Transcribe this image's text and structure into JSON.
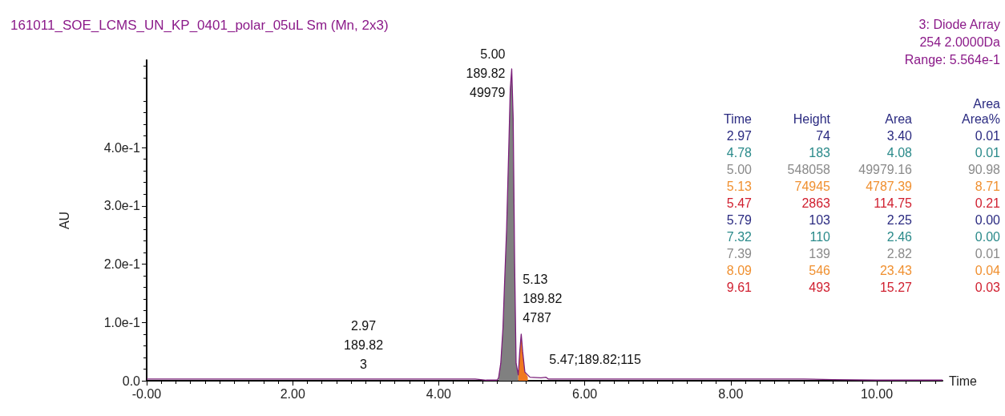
{
  "chart_data": {
    "type": "line",
    "title": "161011_SOE_LCMS_UN_KP_0401_polar_05uL Sm (Mn, 2x3)",
    "xlabel": "Time",
    "ylabel": "AU",
    "xlim": [
      0,
      10.9
    ],
    "ylim": [
      0,
      0.55
    ],
    "xticks": [
      {
        "value": 0,
        "label": "-0.00"
      },
      {
        "value": 2,
        "label": "2.00"
      },
      {
        "value": 4,
        "label": "4.00"
      },
      {
        "value": 6,
        "label": "6.00"
      },
      {
        "value": 8,
        "label": "8.00"
      },
      {
        "value": 10,
        "label": "10.00"
      }
    ],
    "yticks": [
      {
        "value": 0,
        "label": "0.0"
      },
      {
        "value": 0.1,
        "label": "1.0e-1"
      },
      {
        "value": 0.2,
        "label": "2.0e-1"
      },
      {
        "value": 0.3,
        "label": "3.0e-1"
      },
      {
        "value": 0.4,
        "label": "4.0e-1"
      }
    ],
    "series": [
      {
        "type": "area",
        "color": "#808080",
        "x": [
          4.82,
          4.85,
          4.88,
          4.9,
          4.93,
          4.96,
          4.98,
          5.0,
          5.02,
          5.04,
          5.06,
          5.09
        ],
        "values": [
          0.005,
          0.03,
          0.09,
          0.16,
          0.26,
          0.4,
          0.5,
          0.535,
          0.45,
          0.2,
          0.03,
          0.01
        ]
      },
      {
        "type": "area",
        "color": "#f07820",
        "x": [
          5.09,
          5.11,
          5.13,
          5.15,
          5.18,
          5.22
        ],
        "values": [
          0.01,
          0.05,
          0.08,
          0.05,
          0.015,
          0.007
        ]
      },
      {
        "color": "#7b1f7a",
        "x": [
          0,
          4.5,
          4.65,
          4.8,
          4.82,
          4.85,
          4.88,
          4.9,
          4.93,
          4.96,
          4.98,
          5.0,
          5.02,
          5.04,
          5.06,
          5.09,
          5.11,
          5.13,
          5.15,
          5.18,
          5.25,
          5.4,
          5.47,
          5.5,
          9.0,
          9.4,
          10.0,
          10.9
        ],
        "values": [
          0.003,
          0.003,
          0.001,
          0.001,
          0.005,
          0.03,
          0.09,
          0.16,
          0.26,
          0.4,
          0.5,
          0.535,
          0.45,
          0.2,
          0.03,
          0.01,
          0.05,
          0.08,
          0.05,
          0.015,
          0.006,
          0.005,
          0.006,
          0.003,
          0.003,
          0.002,
          0.001,
          0.001
        ]
      }
    ],
    "annotations": [
      {
        "text": "5.00\n189.82\n49979",
        "x": 5.0,
        "y": 0.535
      },
      {
        "text": "5.13\n189.82\n4787",
        "x": 5.13,
        "y": 0.08
      },
      {
        "text": "2.97\n189.82\n3",
        "x": 2.97,
        "y": 0.003
      },
      {
        "text": "5.47;189.82;115",
        "x": 5.47,
        "y": 0.006
      },
      "3: Diode Array",
      "254 2.0000Da",
      "Range: 5.564e-1",
      "Time\tHeight\tArea\tArea\nArea%",
      "2.97\t74\t3.40\t0.01",
      "4.78\t183\t4.08\t0.01",
      "5.00\t548058\t49979.16\t90.98",
      "5.13\t74945\t4787.39\t8.71",
      "5.47\t2863\t114.75\t0.21",
      "5.79\t103\t2.25\t0.00",
      "7.32\t110\t2.46\t0.00",
      "7.39\t139\t2.82\t0.01",
      "8.09\t546\t23.43\t0.04",
      "9.61\t493\t15.27\t0.03"
    ]
  }
}
